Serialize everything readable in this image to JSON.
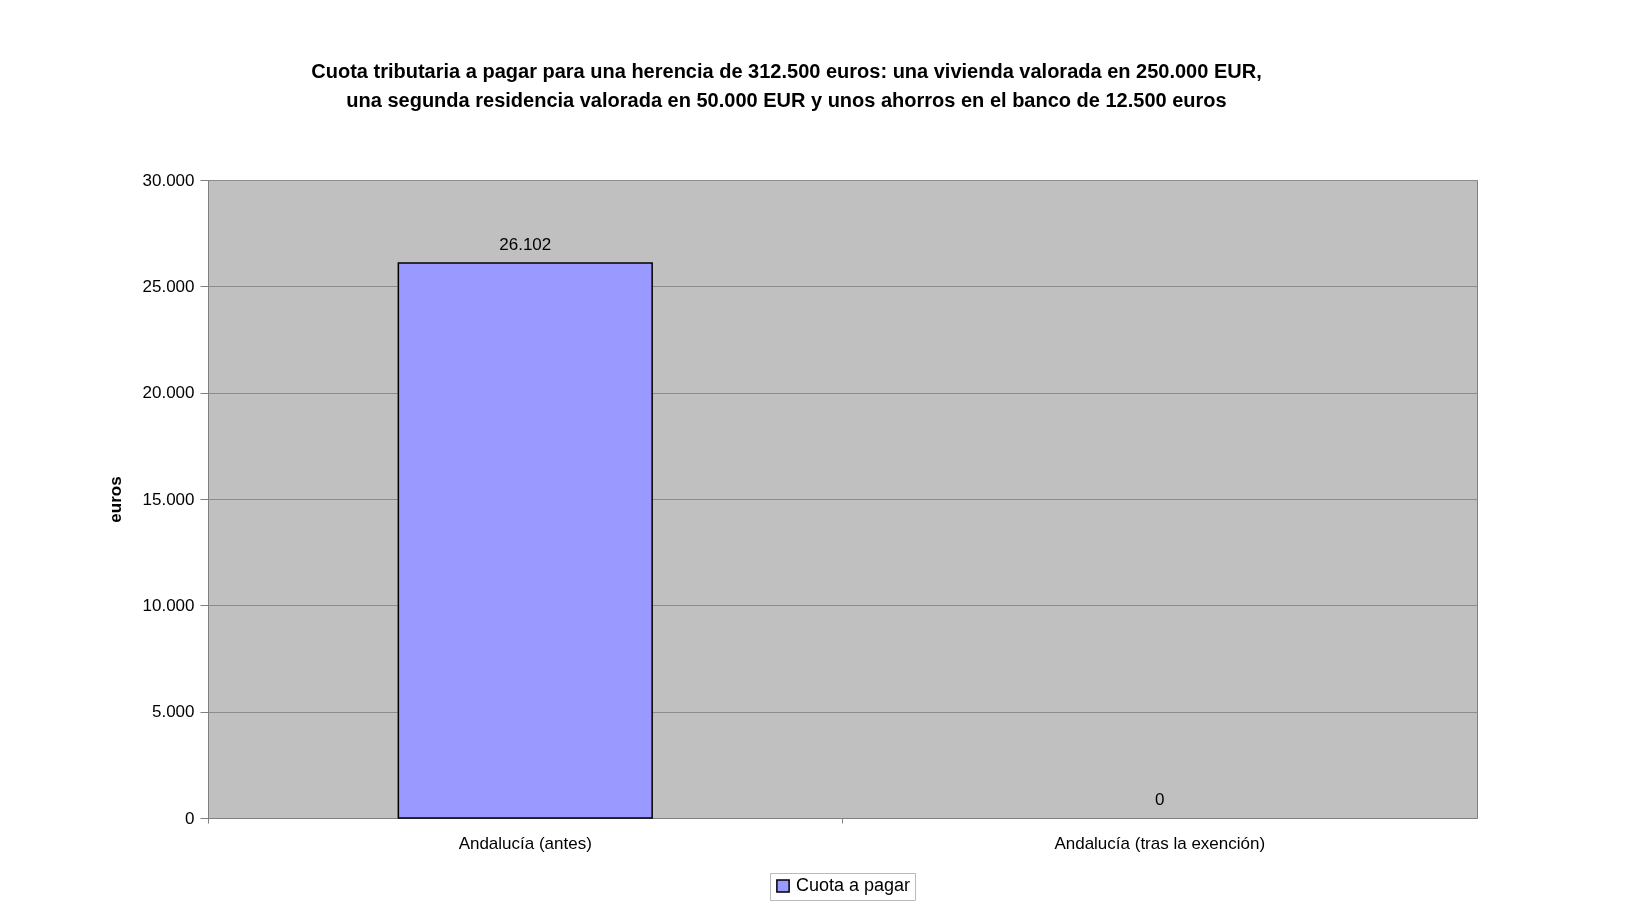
{
  "chart_data": {
    "type": "bar",
    "title": "Cuota tributaria a pagar para una herencia de 312.500 euros: una vivienda valorada en 250.000 EUR,\nuna segunda residencia valorada en 50.000 EUR y unos ahorros en el banco de 12.500 euros",
    "ylabel": "euros",
    "categories": [
      "Andalucía (antes)",
      "Andalucía (tras la exención)"
    ],
    "series": [
      {
        "name": "Cuota a pagar",
        "color": "#9999ff",
        "values": [
          26102,
          0
        ],
        "value_labels": [
          "26.102",
          "0"
        ]
      }
    ],
    "ylim": [
      0,
      30000
    ],
    "yticks": [
      {
        "value": 0,
        "label": "0"
      },
      {
        "value": 5000,
        "label": "5.000"
      },
      {
        "value": 10000,
        "label": "10.000"
      },
      {
        "value": 15000,
        "label": "15.000"
      },
      {
        "value": 20000,
        "label": "20.000"
      },
      {
        "value": 25000,
        "label": "25.000"
      },
      {
        "value": 30000,
        "label": "30.000"
      }
    ],
    "grid": "y",
    "legend": "bottom"
  }
}
